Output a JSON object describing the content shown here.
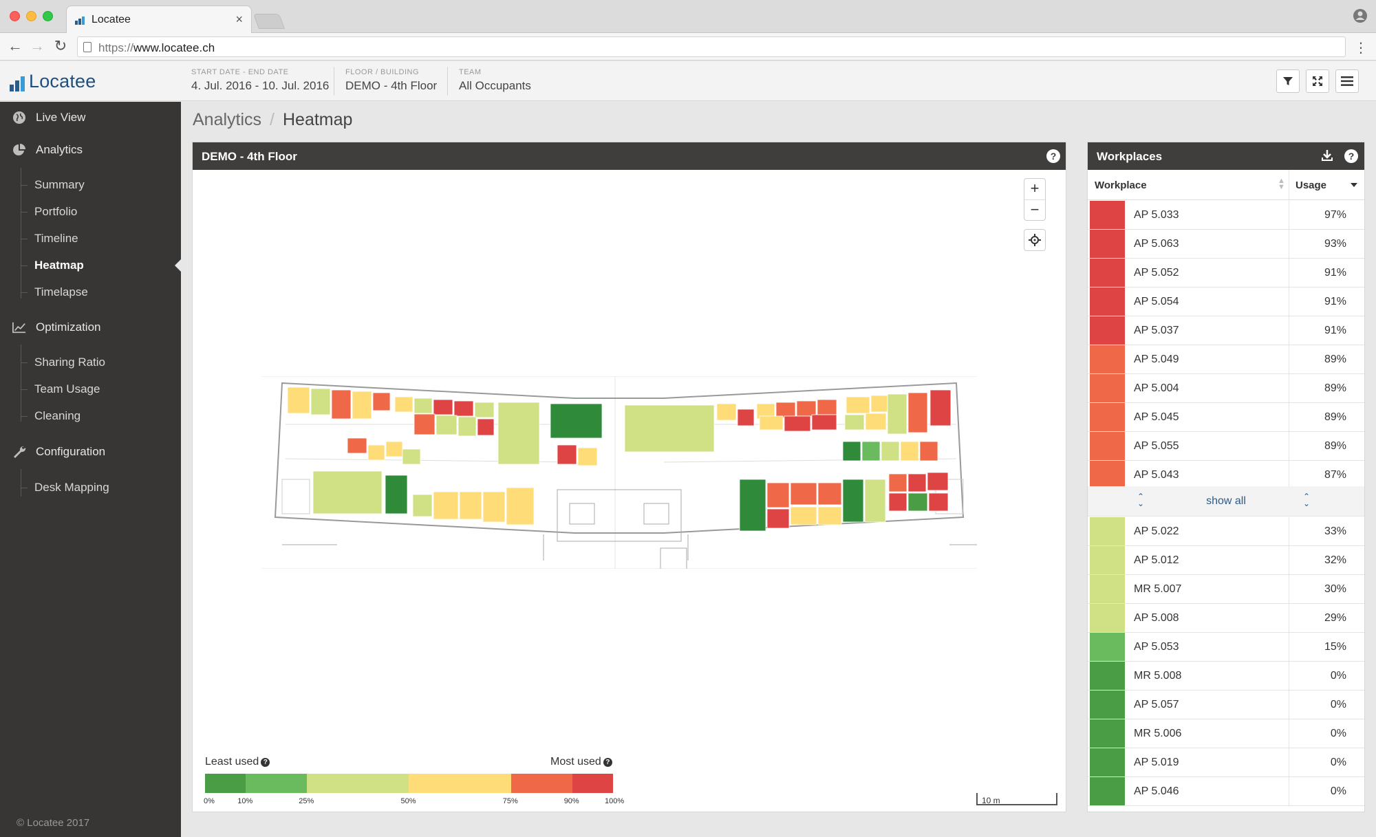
{
  "browser": {
    "tab_title": "Locatee",
    "url_scheme": "https://",
    "url_host": "www.locatee.ch"
  },
  "header": {
    "logo_text": "Locatee",
    "fields": [
      {
        "label": "START DATE - END DATE",
        "value": "4. Jul. 2016 - 10. Jul. 2016"
      },
      {
        "label": "FLOOR / BUILDING",
        "value": "DEMO - 4th Floor"
      },
      {
        "label": "TEAM",
        "value": "All Occupants"
      }
    ],
    "buttons": [
      "filter-icon",
      "fullscreen-icon",
      "menu-icon"
    ]
  },
  "sidebar": {
    "live_view": "Live View",
    "analytics": {
      "label": "Analytics",
      "items": [
        "Summary",
        "Portfolio",
        "Timeline",
        "Heatmap",
        "Timelapse"
      ],
      "active": "Heatmap"
    },
    "optimization": {
      "label": "Optimization",
      "items": [
        "Sharing Ratio",
        "Team Usage",
        "Cleaning"
      ]
    },
    "configuration": {
      "label": "Configuration",
      "items": [
        "Desk Mapping"
      ]
    },
    "footer": "Locatee 2017"
  },
  "breadcrumb": {
    "parent": "Analytics",
    "separator": "/",
    "current": "Heatmap"
  },
  "map_panel": {
    "title": "DEMO - 4th Floor",
    "zoom_in": "+",
    "zoom_out": "−",
    "legend": {
      "least": "Least used",
      "most": "Most used",
      "ticks": [
        "0%",
        "10%",
        "25%",
        "50%",
        "75%",
        "90%",
        "100%"
      ],
      "bands": [
        {
          "from": 0,
          "to": 10,
          "color": "#4a9d45"
        },
        {
          "from": 10,
          "to": 25,
          "color": "#69bb5e"
        },
        {
          "from": 25,
          "to": 50,
          "color": "#cfe085"
        },
        {
          "from": 50,
          "to": 75,
          "color": "#fedd78"
        },
        {
          "from": 75,
          "to": 90,
          "color": "#ef6847"
        },
        {
          "from": 90,
          "to": 100,
          "color": "#df4444"
        }
      ]
    },
    "scale_label": "10 m"
  },
  "workplaces": {
    "title": "Workplaces",
    "col_workplace": "Workplace",
    "col_usage": "Usage",
    "show_all": "show all",
    "top": [
      {
        "name": "AP 5.033",
        "usage": "97%",
        "color": "#df4444"
      },
      {
        "name": "AP 5.063",
        "usage": "93%",
        "color": "#df4444"
      },
      {
        "name": "AP 5.052",
        "usage": "91%",
        "color": "#df4444"
      },
      {
        "name": "AP 5.054",
        "usage": "91%",
        "color": "#df4444"
      },
      {
        "name": "AP 5.037",
        "usage": "91%",
        "color": "#df4444"
      },
      {
        "name": "AP 5.049",
        "usage": "89%",
        "color": "#ef6847"
      },
      {
        "name": "AP 5.004",
        "usage": "89%",
        "color": "#ef6847"
      },
      {
        "name": "AP 5.045",
        "usage": "89%",
        "color": "#ef6847"
      },
      {
        "name": "AP 5.055",
        "usage": "89%",
        "color": "#ef6847"
      },
      {
        "name": "AP 5.043",
        "usage": "87%",
        "color": "#ef6847"
      }
    ],
    "bottom": [
      {
        "name": "AP 5.022",
        "usage": "33%",
        "color": "#cfe085"
      },
      {
        "name": "AP 5.012",
        "usage": "32%",
        "color": "#cfe085"
      },
      {
        "name": "MR 5.007",
        "usage": "30%",
        "color": "#cfe085"
      },
      {
        "name": "AP 5.008",
        "usage": "29%",
        "color": "#cfe085"
      },
      {
        "name": "AP 5.053",
        "usage": "15%",
        "color": "#69bb5e"
      },
      {
        "name": "MR 5.008",
        "usage": "0%",
        "color": "#4a9d45"
      },
      {
        "name": "AP 5.057",
        "usage": "0%",
        "color": "#4a9d45"
      },
      {
        "name": "MR 5.006",
        "usage": "0%",
        "color": "#4a9d45"
      },
      {
        "name": "AP 5.019",
        "usage": "0%",
        "color": "#4a9d45"
      },
      {
        "name": "AP 5.046",
        "usage": "0%",
        "color": "#4a9d45"
      }
    ]
  }
}
